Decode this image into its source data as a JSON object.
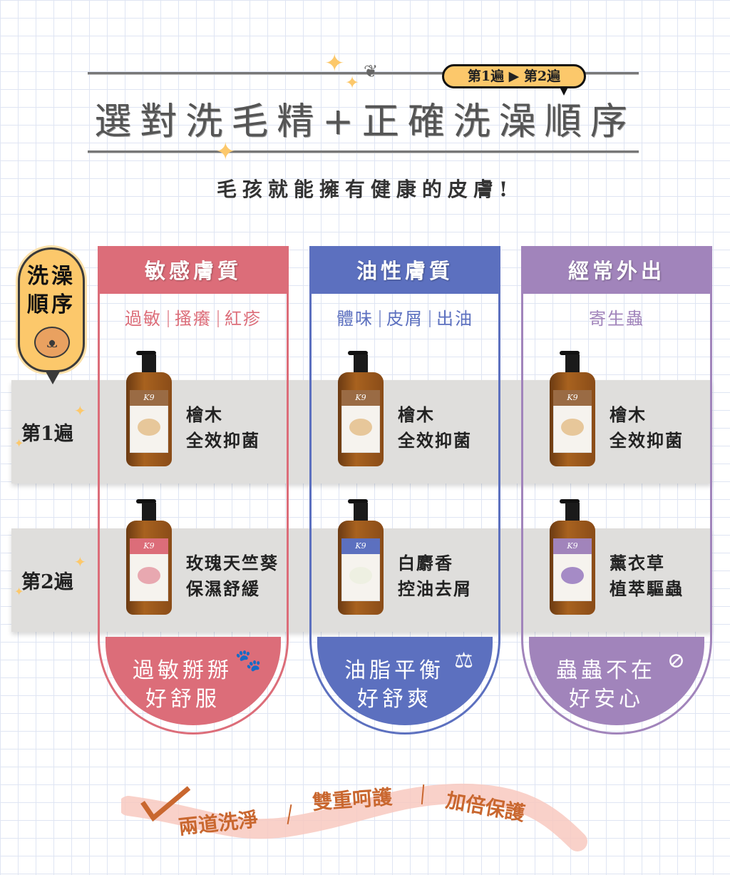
{
  "header": {
    "order_badge": "第1遍 ▶ 第2遍",
    "title": "選對洗毛精+正確洗澡順序",
    "subtitle": "毛孩就能擁有健康的皮膚!"
  },
  "sidebar": {
    "label_line1": "洗澡",
    "label_line2": "順序",
    "icon": "shiba-dog-bath-icon"
  },
  "rounds": [
    "第1遍",
    "第2遍"
  ],
  "columns": [
    {
      "title": "敏感膚質",
      "color": "#dc6d79",
      "tags": [
        "過敏",
        "搔癢",
        "紅疹"
      ],
      "products": [
        {
          "line1": "檜木",
          "line2": "全效抑菌",
          "brand": "K9"
        },
        {
          "line1": "玫瑰天竺葵",
          "line2": "保濕舒緩",
          "brand": "K9"
        }
      ],
      "result_line1": "過敏掰掰",
      "result_line2": "好舒服",
      "result_icon": "paw-icon"
    },
    {
      "title": "油性膚質",
      "color": "#5c70bf",
      "tags": [
        "體味",
        "皮屑",
        "出油"
      ],
      "products": [
        {
          "line1": "檜木",
          "line2": "全效抑菌",
          "brand": "K9"
        },
        {
          "line1": "白麝香",
          "line2": "控油去屑",
          "brand": "K9"
        }
      ],
      "result_line1": "油脂平衡",
      "result_line2": "好舒爽",
      "result_icon": "balance-scale-icon"
    },
    {
      "title": "經常外出",
      "color": "#a184bb",
      "tags": [
        "寄生蟲"
      ],
      "products": [
        {
          "line1": "檜木",
          "line2": "全效抑菌",
          "brand": "K9"
        },
        {
          "line1": "薰衣草",
          "line2": "植萃驅蟲",
          "brand": "K9"
        }
      ],
      "result_line1": "蟲蟲不在",
      "result_line2": "好安心",
      "result_icon": "no-mosquito-icon"
    }
  ],
  "footer": {
    "items": [
      "兩道洗淨",
      "雙重呵護",
      "加倍保護"
    ],
    "color": "#c9672f"
  }
}
